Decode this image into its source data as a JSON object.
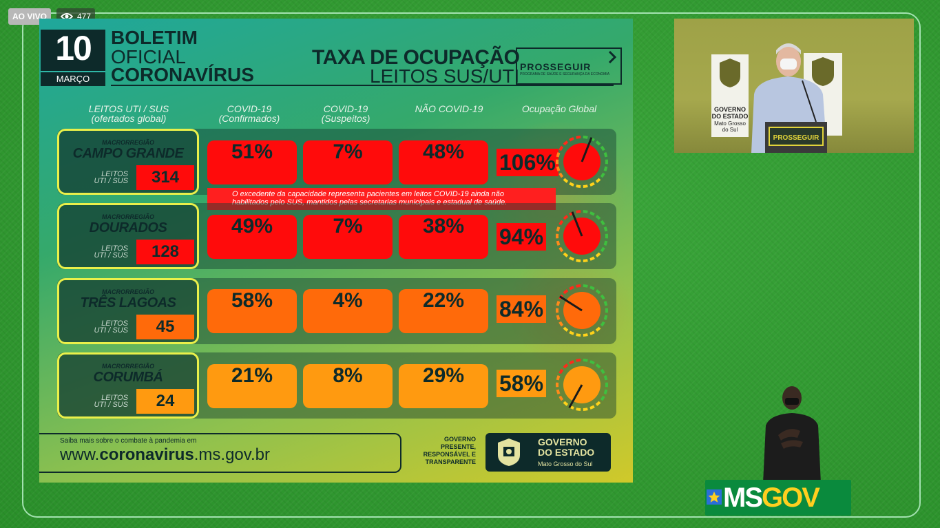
{
  "overlay": {
    "live_label": "AO VIVO",
    "viewer_count": "477"
  },
  "slide": {
    "day": "10",
    "month": "MARÇO",
    "title_line1": "BOLETIM",
    "title_line2": "OFICIAL",
    "title_line3": "CORONAVÍRUS",
    "subtitle_line1": "TAXA DE OCUPAÇÃO",
    "subtitle_line2": "LEITOS SUS/UTI",
    "prosseguir_label": "PROSSEGUIR",
    "prosseguir_sub": "PROGRAMA DE SAÚDE E SEGURANÇA DA ECONOMIA",
    "columns": {
      "leitos_1": "LEITOS UTI / SUS",
      "leitos_2": "(ofertados global)",
      "covid_conf_1": "COVID-19",
      "covid_conf_2": "(Confirmados)",
      "covid_susp_1": "COVID-19",
      "covid_susp_2": "(Suspeitos)",
      "nao_covid": "NÃO COVID-19",
      "global": "Ocupação Global"
    },
    "macro_label": "MACRORREGIÃO",
    "leitos_label_1": "LEITOS",
    "leitos_label_2": "UTI / SUS",
    "regions": [
      {
        "name": "CAMPO GRANDE",
        "leitos": "314",
        "confirmados": "51%",
        "suspeitos": "7%",
        "nao_covid": "48%",
        "global": "106%",
        "global_fraction": 1.06
      },
      {
        "name": "DOURADOS",
        "leitos": "128",
        "confirmados": "49%",
        "suspeitos": "7%",
        "nao_covid": "38%",
        "global": "94%",
        "global_fraction": 0.94
      },
      {
        "name": "TRÊS LAGOAS",
        "leitos": "45",
        "confirmados": "58%",
        "suspeitos": "4%",
        "nao_covid": "22%",
        "global": "84%",
        "global_fraction": 0.84
      },
      {
        "name": "CORUMBÁ",
        "leitos": "24",
        "confirmados": "21%",
        "suspeitos": "8%",
        "nao_covid": "29%",
        "global": "58%",
        "global_fraction": 0.58
      }
    ],
    "note_line1": "O excedente da capacidade representa pacientes em leitos COVID-19 ainda não",
    "note_line2": "habilitados pelo SUS, mantidos pelas secretarias municipais e estadual de saúde.",
    "footer": {
      "saiba": "Saiba mais sobre o combate à pandemia em",
      "url_prefix": "www.",
      "url_bold": "coronavirus",
      "url_suffix": ".ms.gov.br",
      "gov_side_1": "GOVERNO",
      "gov_side_2": "PRESENTE,",
      "gov_side_3": "RESPONSÁVEL E",
      "gov_side_4": "TRANSPARENTE",
      "gov_name_1": "GOVERNO",
      "gov_name_2": "DO ESTADO",
      "gov_state": "Mato Grosso do Sul"
    }
  },
  "video": {
    "banner_left_1": "GOVERNO",
    "banner_left_2": "DO ESTADO",
    "banner_left_3": "Mato Grosso",
    "banner_left_4": "do Sul",
    "podium_label": "PROSSEGUIR"
  },
  "brand": {
    "ms": "MS",
    "gov": "GOV"
  },
  "colors": {
    "critical": "#ff0b0b",
    "high": "#ff6a0a",
    "medium": "#ff9a10"
  }
}
